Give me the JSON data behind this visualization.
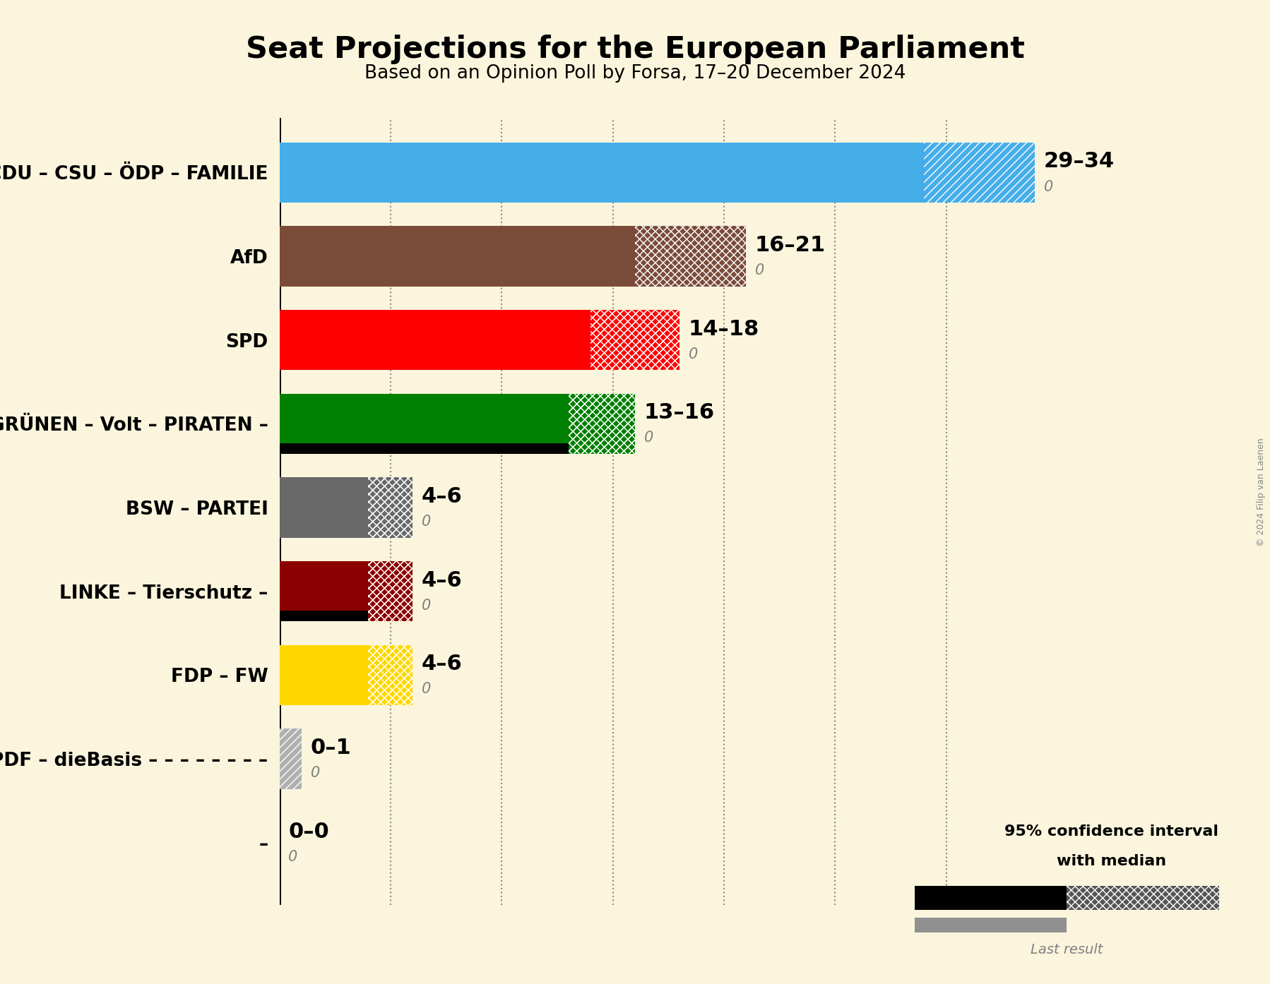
{
  "title": "Seat Projections for the European Parliament",
  "subtitle": "Based on an Opinion Poll by Forsa, 17–20 December 2024",
  "copyright": "© 2024 Filip van Laenen",
  "background_color": "#FAF5DC",
  "parties": [
    {
      "name": "CDU – CSU – ÖDP – FAMILIE",
      "median": 29,
      "high": 34,
      "last": 0,
      "color": "#45aee8",
      "hatch_ci": "///",
      "hatch_ci2": null,
      "black_bar": false,
      "label": "29–34"
    },
    {
      "name": "AfD",
      "median": 16,
      "high": 21,
      "last": 0,
      "color": "#7B4B3A",
      "hatch_ci": "xxx",
      "hatch_ci2": null,
      "black_bar": false,
      "label": "16–21"
    },
    {
      "name": "SPD",
      "median": 14,
      "high": 18,
      "last": 0,
      "color": "#FF0000",
      "hatch_ci": "xxx",
      "hatch_ci2": "///",
      "black_bar": false,
      "label": "14–18"
    },
    {
      "name": "GRÜNEN – Volt – PIRATEN –",
      "median": 13,
      "high": 16,
      "last": 0,
      "color": "#008000",
      "hatch_ci": "xxx",
      "hatch_ci2": "///",
      "black_bar": true,
      "label": "13–16"
    },
    {
      "name": "BSW – PARTEI",
      "median": 4,
      "high": 6,
      "last": 0,
      "color": "#696969",
      "hatch_ci": "xxx",
      "hatch_ci2": "///",
      "black_bar": false,
      "label": "4–6"
    },
    {
      "name": "LINKE – Tierschutz –",
      "median": 4,
      "high": 6,
      "last": 0,
      "color": "#8B0000",
      "hatch_ci": "xxx",
      "hatch_ci2": "///",
      "black_bar": true,
      "label": "4–6"
    },
    {
      "name": "FDP – FW",
      "median": 4,
      "high": 6,
      "last": 0,
      "color": "#FFD700",
      "hatch_ci": "xxx",
      "hatch_ci2": "///",
      "black_bar": false,
      "label": "4–6"
    },
    {
      "name": "PDF – dieBasis – – – – – – – –",
      "median": 0,
      "high": 1,
      "last": 0,
      "color": "#B0B0B0",
      "hatch_ci": "///",
      "hatch_ci2": null,
      "black_bar": false,
      "label": "0–1"
    },
    {
      "name": "–",
      "median": 0,
      "high": 0,
      "last": 0,
      "color": "#000000",
      "hatch_ci": null,
      "hatch_ci2": null,
      "black_bar": false,
      "label": "0–0"
    }
  ],
  "xlim_max": 36,
  "bar_height": 0.72,
  "gridline_positions": [
    5,
    10,
    15,
    20,
    25,
    30
  ]
}
